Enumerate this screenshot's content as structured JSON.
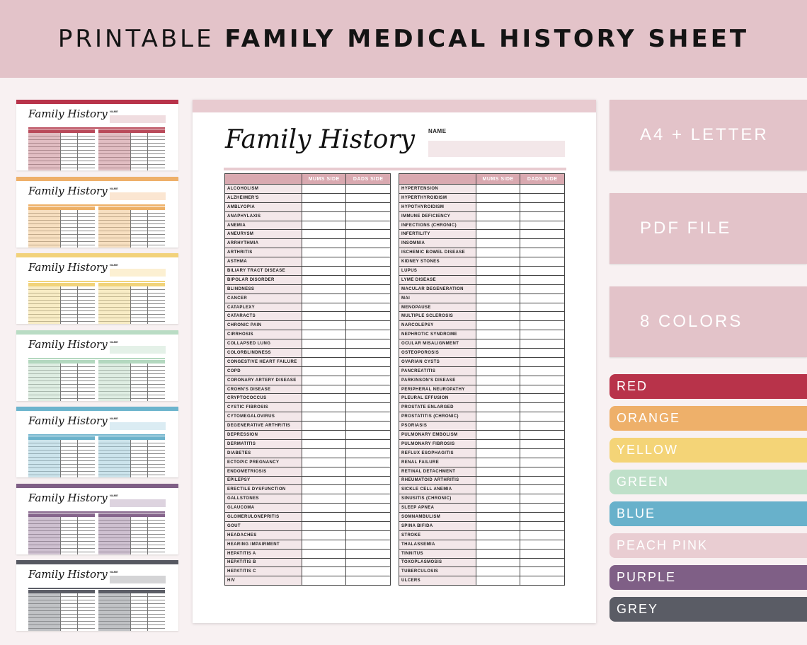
{
  "banner": {
    "title_light": "PRINTABLE",
    "title_bold": "FAMILY MEDICAL HISTORY SHEET"
  },
  "sheet": {
    "title": "Family History",
    "name_label": "NAME",
    "col_mums": "MUMS SIDE",
    "col_dads": "DADS SIDE",
    "left_conditions": [
      "ALCOHOLISM",
      "ALZHEIMER'S",
      "AMBLYOPIA",
      "ANAPHYLAXIS",
      "ANEMIA",
      "ANEURYSM",
      "ARRHYTHMIA",
      "ARTHRITIS",
      "ASTHMA",
      "BILIARY TRACT DISEASE",
      "BIPOLAR DISORDER",
      "BLINDNESS",
      "CANCER",
      "CATAPLEXY",
      "CATARACTS",
      "CHRONIC PAIN",
      "CIRRHOSIS",
      "COLLAPSED LUNG",
      "COLORBLINDNESS",
      "CONGESTIVE HEART FAILURE",
      "COPD",
      "CORONARY ARTERY DISEASE",
      "CROHN'S DISEASE",
      "CRYPTOCOCCUS",
      "CYSTIC FIBROSIS",
      "CYTOMEGALOVIRUS",
      "DEGENERATIVE ARTHRITIS",
      "DEPRESSION",
      "DERMATITIS",
      "DIABETES",
      "ECTOPIC PREGNANCY",
      "ENDOMETRIOSIS",
      "EPILEPSY",
      "ERECTILE DYSFUNCTION",
      "GALLSTONES",
      "GLAUCOMA",
      "GLOMERULONEPRITIS",
      "GOUT",
      "HEADACHES",
      "HEARING IMPAIRMENT",
      "HEPATITIS A",
      "HEPATITIS B",
      "HEPATITIS C",
      "HIV"
    ],
    "right_conditions": [
      "HYPERTENSION",
      "HYPERTHYROIDISM",
      "HYPOTHYROIDISM",
      "IMMUNE DEFICIENCY",
      "INFECTIONS (CHRONIC)",
      "INFERTILITY",
      "INSOMNIA",
      "ISCHEMIC BOWEL DISEASE",
      "KIDNEY STONES",
      "LUPUS",
      "LYME DISEASE",
      "MACULAR DEGENERATION",
      "MAI",
      "MENOPAUSE",
      "MULTIPLE SCLEROSIS",
      "NARCOLEPSY",
      "NEPHROTIC SYNDROME",
      "OCULAR MISALIGNMENT",
      "OSTEOPOROSIS",
      "OVARIAN CYSTS",
      "PANCREATITIS",
      "PARKINSON'S DISEASE",
      "PERIPHERAL NEUROPATHY",
      "PLEURAL EFFUSION",
      "PROSTATE ENLARGED",
      "PROSTATITIS (CHRONIC)",
      "PSORIASIS",
      "PULMONARY EMBOLISM",
      "PULMONARY FIBROSIS",
      "REFLUX ESOPHAGITIS",
      "RENAL FAILURE",
      "RETINAL DETACHMENT",
      "RHEUMATOID ARTHRITIS",
      "SICKLE CELL ANEMIA",
      "SINUSITIS (CHRONIC)",
      "SLEEP APNEA",
      "SOMNAMBULISM",
      "SPINA BIFIDA",
      "STROKE",
      "THALASSEMIA",
      "TINNITUS",
      "TOXOPLASMOSIS",
      "TUBERCULOSIS",
      "ULCERS"
    ]
  },
  "thumbnails": {
    "title": "Family History",
    "name_label": "NAME",
    "colors": [
      {
        "bar": "#b8334a",
        "header": "#b94a5a",
        "label": "#c98790",
        "box": "#f0dde0"
      },
      {
        "bar": "#eeb06a",
        "header": "#edb067",
        "label": "#f0c48c",
        "box": "#fbe6d2"
      },
      {
        "bar": "#f2d27a",
        "header": "#f1d37a",
        "label": "#f3dc96",
        "box": "#fcf0d2"
      },
      {
        "bar": "#b9dcc4",
        "header": "#b3d8bf",
        "label": "#c2dfca",
        "box": "#e4f1e8"
      },
      {
        "bar": "#6cb4cd",
        "header": "#6cb2cb",
        "label": "#a2cedd",
        "box": "#dbecf3"
      },
      {
        "bar": "#7f5f86",
        "header": "#86658c",
        "label": "#a58caa",
        "box": "#ddd3df"
      },
      {
        "bar": "#565861",
        "header": "#5b5d66",
        "label": "#8d8f96",
        "box": "#d4d4d6"
      }
    ]
  },
  "info_boxes": [
    "A4 + LETTER",
    "PDF FILE",
    "8 COLORS"
  ],
  "swatches": [
    {
      "label": "RED",
      "color": "#b8334a"
    },
    {
      "label": "ORANGE",
      "color": "#eeb06a"
    },
    {
      "label": "YELLOW",
      "color": "#f4d477"
    },
    {
      "label": "GREEN",
      "color": "#bfe0c9"
    },
    {
      "label": "BLUE",
      "color": "#68b1cb"
    },
    {
      "label": "PEACH PINK",
      "color": "#e9cdd2"
    },
    {
      "label": "PURPLE",
      "color": "#7f5f86"
    },
    {
      "label": "GREY",
      "color": "#5a5c65"
    }
  ]
}
